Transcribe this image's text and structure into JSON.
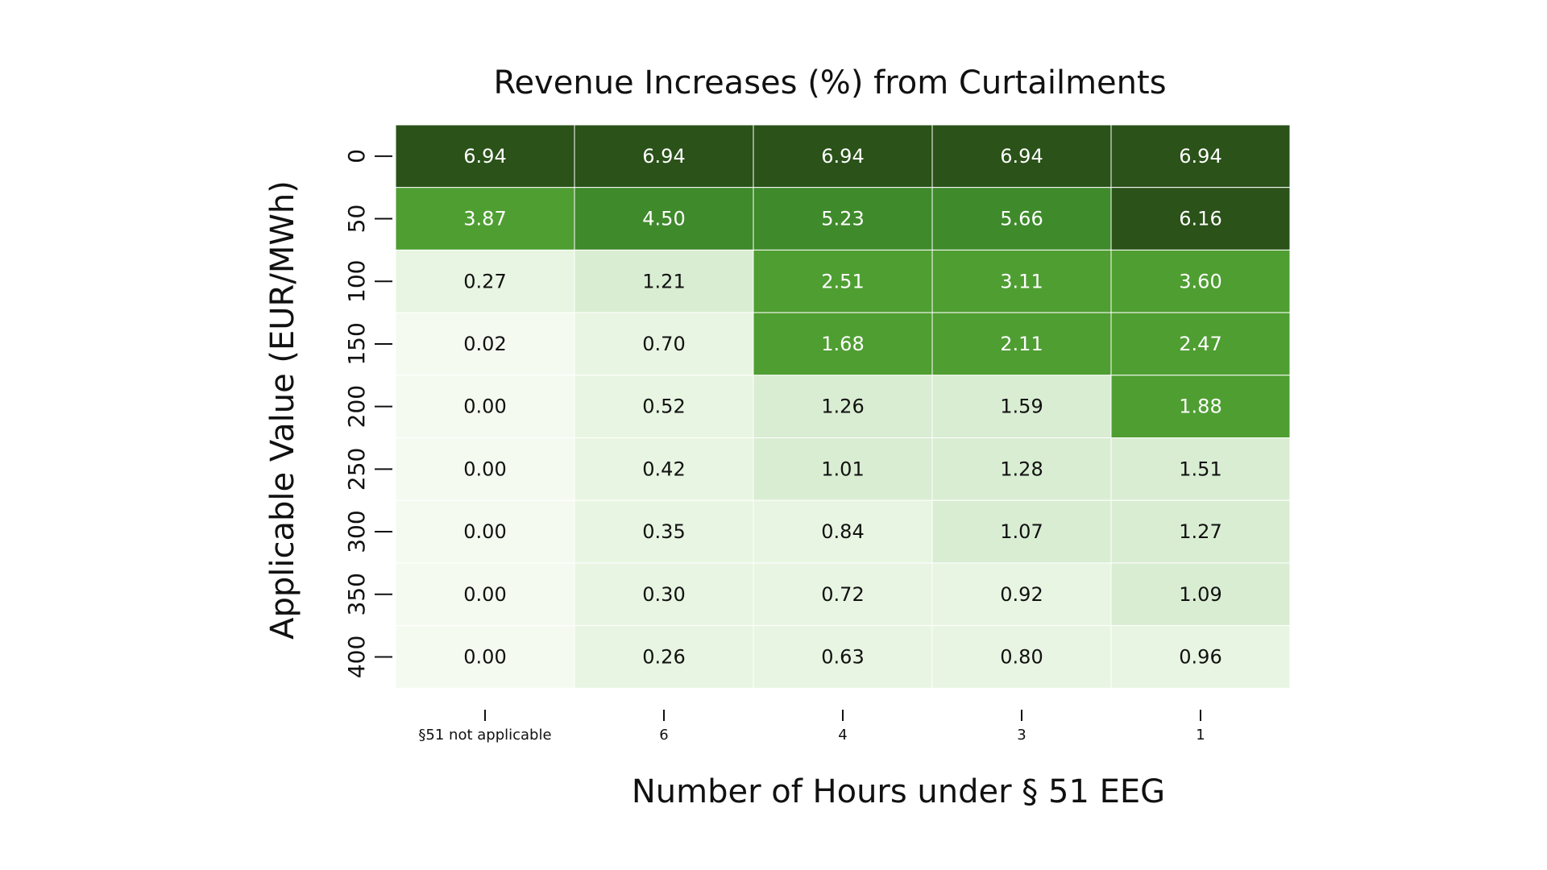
{
  "chart_data": {
    "type": "heatmap",
    "title": "Revenue Increases (%) from Curtailments",
    "xlabel": "Number of Hours under § 51 EEG",
    "ylabel": "Applicable Value (EUR/MWh)",
    "x_categories": [
      "§51 not applicable",
      "6",
      "4",
      "3",
      "1"
    ],
    "y_categories": [
      "0",
      "50",
      "100",
      "150",
      "200",
      "250",
      "300",
      "350",
      "400"
    ],
    "values": [
      [
        "6.94",
        "6.94",
        "6.94",
        "6.94",
        "6.94"
      ],
      [
        "3.87",
        "4.50",
        "5.23",
        "5.66",
        "6.16"
      ],
      [
        "0.27",
        "1.21",
        "2.51",
        "3.11",
        "3.60"
      ],
      [
        "0.02",
        "0.70",
        "1.68",
        "2.11",
        "2.47"
      ],
      [
        "0.00",
        "0.52",
        "1.26",
        "1.59",
        "1.88"
      ],
      [
        "0.00",
        "0.42",
        "1.01",
        "1.28",
        "1.51"
      ],
      [
        "0.00",
        "0.35",
        "0.84",
        "1.07",
        "1.27"
      ],
      [
        "0.00",
        "0.30",
        "0.72",
        "0.92",
        "1.09"
      ],
      [
        "0.00",
        "0.26",
        "0.63",
        "0.80",
        "0.96"
      ]
    ],
    "color_scale": [
      {
        "min": 0.0,
        "max": 0.25,
        "color": "#f5faf1"
      },
      {
        "min": 0.25,
        "max": 1.0,
        "color": "#e8f5e2"
      },
      {
        "min": 1.0,
        "max": 1.6,
        "color": "#d9edd2"
      },
      {
        "min": 1.6,
        "max": 4.0,
        "color": "#4f9e32"
      },
      {
        "min": 4.0,
        "max": 5.9,
        "color": "#3f8a2b"
      },
      {
        "min": 5.9,
        "max": 10.0,
        "color": "#2a5219"
      }
    ],
    "text_colors": {
      "light": "#ffffff",
      "dark": "#111111"
    },
    "grid_color": "#ffffff",
    "legend": "none"
  }
}
